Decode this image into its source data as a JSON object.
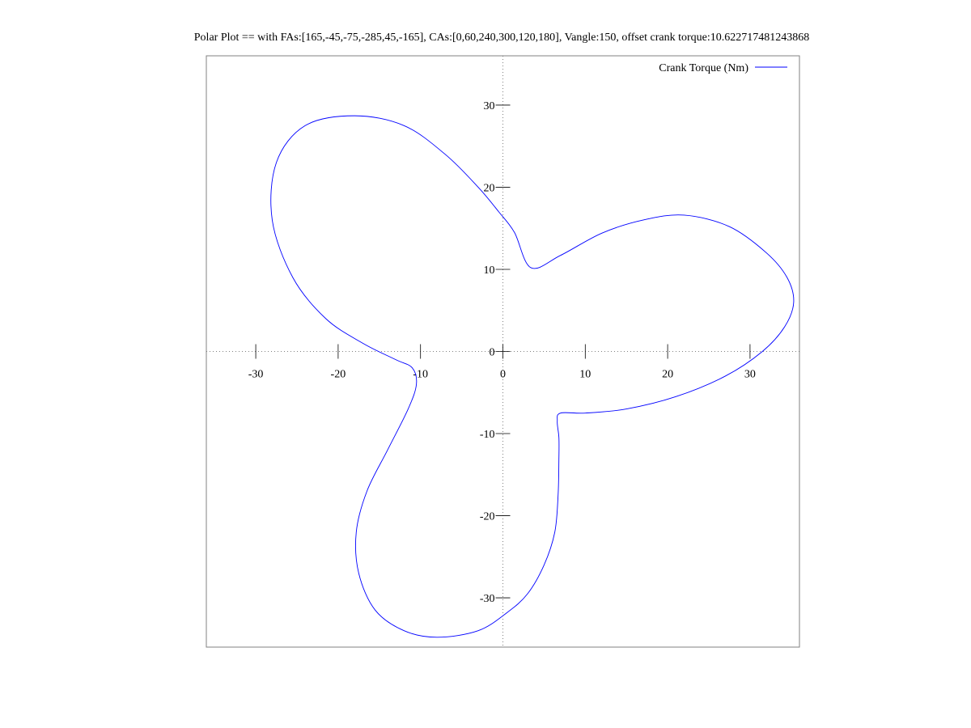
{
  "chart_data": {
    "type": "line",
    "title": "Polar Plot == with FAs:[165,-45,-75,-285,45,-165], CAs:[0,60,240,300,120,180], Vangle:150, offset crank torque:10.622717481243868",
    "xlabel": "",
    "ylabel": "",
    "xlim": [
      -36,
      36
    ],
    "ylim": [
      -36,
      36
    ],
    "xticks": [
      -30,
      -20,
      -10,
      0,
      10,
      20,
      30
    ],
    "yticks": [
      -30,
      -20,
      -10,
      0,
      10,
      20,
      30
    ],
    "xtick_labels": [
      "-30",
      "-20",
      "-10",
      "0",
      "10",
      "20",
      "30"
    ],
    "ytick_labels": [
      "-30",
      "-20",
      "-10",
      "0",
      "10",
      "20",
      "30"
    ],
    "zero_axes": "dotted",
    "legend_position": "top-right",
    "series": [
      {
        "name": "Crank Torque (Nm)",
        "color": "#0000ff",
        "x": [
          1.4,
          3.4,
          7.0,
          12.0,
          17.0,
          22.0,
          27.5,
          32.0,
          34.5,
          35.3,
          34.2,
          31.5,
          27.0,
          21.0,
          15.0,
          10.0,
          7.0,
          6.6,
          6.8,
          6.8,
          6.7,
          6.3,
          5.0,
          3.0,
          0.5,
          -3.0,
          -8.0,
          -12.0,
          -15.5,
          -17.5,
          -17.8,
          -16.5,
          -14.0,
          -11.5,
          -10.5,
          -11.0,
          -13.0,
          -17.0,
          -21.5,
          -25.5,
          -28.0,
          -27.5,
          -24.0,
          -18.0,
          -12.0,
          -7.0,
          -3.0,
          -0.5,
          1.4
        ],
        "y": [
          14.5,
          10.2,
          11.7,
          14.4,
          16.0,
          16.6,
          15.2,
          12.0,
          9.0,
          6.0,
          3.0,
          0.0,
          -3.0,
          -5.5,
          -7.0,
          -7.5,
          -7.5,
          -8.5,
          -10.5,
          -13.0,
          -17.5,
          -22.0,
          -26.0,
          -29.5,
          -31.8,
          -34.0,
          -34.8,
          -34.0,
          -31.5,
          -27.0,
          -22.0,
          -17.0,
          -12.0,
          -7.0,
          -4.0,
          -2.0,
          -1.0,
          1.0,
          4.0,
          9.0,
          16.0,
          23.0,
          27.5,
          28.7,
          27.5,
          24.0,
          20.0,
          17.0,
          14.5
        ]
      }
    ]
  }
}
